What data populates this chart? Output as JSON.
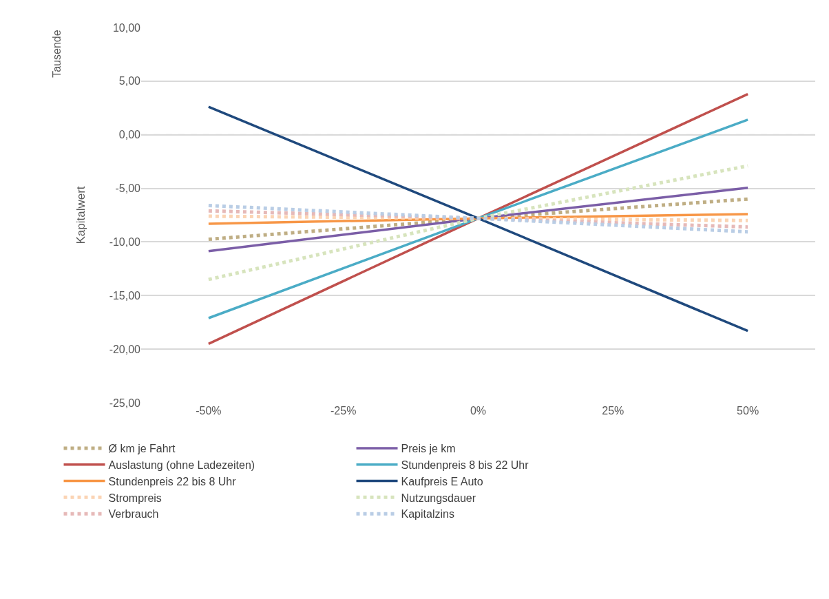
{
  "chart_data": {
    "type": "line",
    "ylabel": "Kapitalwert",
    "annotations": [
      "Tausende"
    ],
    "x": [
      -50,
      0,
      50
    ],
    "xlim": [
      -62.5,
      62.5
    ],
    "xticks": [
      {
        "value": -50,
        "label": "-50%"
      },
      {
        "value": -25,
        "label": "-25%"
      },
      {
        "value": 0,
        "label": "0%"
      },
      {
        "value": 25,
        "label": "25%"
      },
      {
        "value": 50,
        "label": "50%"
      }
    ],
    "ylim": [
      -25,
      10
    ],
    "yticks": [
      {
        "value": -25,
        "label": "-25,00"
      },
      {
        "value": -20,
        "label": "-20,00"
      },
      {
        "value": -15,
        "label": "-15,00"
      },
      {
        "value": -10,
        "label": "-10,00"
      },
      {
        "value": -5,
        "label": "-5,00"
      },
      {
        "value": 0,
        "label": "0,00"
      },
      {
        "value": 5,
        "label": "5,00"
      },
      {
        "value": 10,
        "label": "10,00"
      }
    ],
    "grid": "y",
    "legend": "bottom",
    "marker": "none",
    "ref_lines": [
      {
        "axis": "y",
        "value": 0,
        "color": "#d9d9d9",
        "line_style": "dashed"
      }
    ],
    "series": [
      {
        "name": "Ø km je Fahrt",
        "color": "#bfae84",
        "line_style": "dotted",
        "values": [
          -9.75,
          -7.8,
          -6.0
        ]
      },
      {
        "name": "Preis je km",
        "color": "#7b5ea7",
        "line_style": "solid",
        "values": [
          -10.85,
          -7.8,
          -4.95
        ]
      },
      {
        "name": "Auslastung (ohne Ladezeiten)",
        "color": "#c0504d",
        "line_style": "solid",
        "values": [
          -19.5,
          -7.8,
          3.8
        ]
      },
      {
        "name": "Stundenpreis 8 bis 22 Uhr",
        "color": "#4bacc6",
        "line_style": "solid",
        "values": [
          -17.1,
          -7.8,
          1.4
        ]
      },
      {
        "name": "Stundenpreis 22 bis 8 Uhr",
        "color": "#f79646",
        "line_style": "solid",
        "values": [
          -8.3,
          -7.8,
          -7.4
        ]
      },
      {
        "name": "Kaufpreis E Auto",
        "color": "#1f497d",
        "line_style": "solid",
        "values": [
          2.6,
          -7.8,
          -18.3
        ]
      },
      {
        "name": "Strompreis",
        "color": "#fbd4b4",
        "line_style": "dotted",
        "values": [
          -7.6,
          -7.8,
          -8.0
        ]
      },
      {
        "name": "Nutzungsdauer",
        "color": "#d7e4bd",
        "line_style": "dotted",
        "values": [
          -13.5,
          -7.8,
          -2.9
        ]
      },
      {
        "name": "Verbrauch",
        "color": "#e6b9b8",
        "line_style": "dotted",
        "values": [
          -7.1,
          -7.8,
          -8.6
        ]
      },
      {
        "name": "Kapitalzins",
        "color": "#b9cde5",
        "line_style": "dotted",
        "values": [
          -6.6,
          -7.8,
          -9.05
        ]
      }
    ]
  }
}
